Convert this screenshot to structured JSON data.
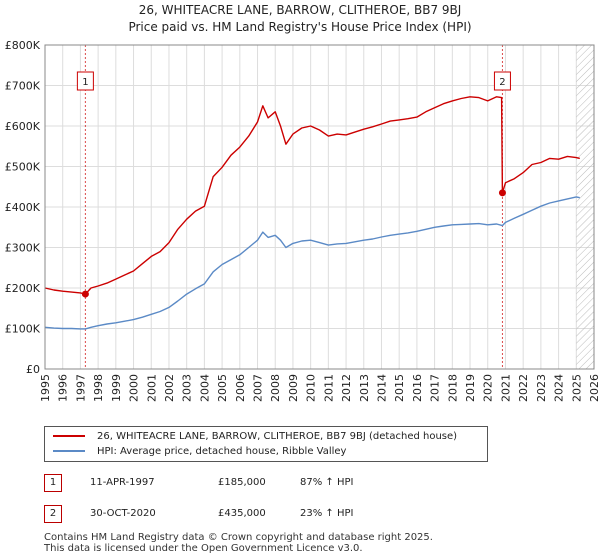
{
  "title_line1": "26, WHITEACRE LANE, BARROW, CLITHEROE, BB7 9BJ",
  "title_line2": "Price paid vs. HM Land Registry's House Price Index (HPI)",
  "colors": {
    "property": "#cc0000",
    "hpi": "#5b8ac6",
    "grid": "#dddddd",
    "marker": "#cc0000",
    "hatch": "#bbbbbb"
  },
  "legend": {
    "property_label": "26, WHITEACRE LANE, BARROW, CLITHEROE, BB7 9BJ (detached house)",
    "hpi_label": "HPI: Average price, detached house, Ribble Valley"
  },
  "annotations": [
    {
      "id": "1",
      "date": "11-APR-1997",
      "price": "£185,000",
      "hpi_change": "87% ↑ HPI"
    },
    {
      "id": "2",
      "date": "30-OCT-2020",
      "price": "£435,000",
      "hpi_change": "23% ↑ HPI"
    }
  ],
  "footer_line1": "Contains HM Land Registry data © Crown copyright and database right 2025.",
  "footer_line2": "This data is licensed under the Open Government Licence v3.0.",
  "chart_data": {
    "type": "line",
    "title": "26, WHITEACRE LANE, BARROW, CLITHEROE, BB7 9BJ",
    "subtitle": "Price paid vs. HM Land Registry's House Price Index (HPI)",
    "xlabel": "",
    "ylabel": "",
    "xlim": [
      1995,
      2026
    ],
    "ylim": [
      0,
      800000
    ],
    "y_ticks": [
      0,
      100000,
      200000,
      300000,
      400000,
      500000,
      600000,
      700000,
      800000
    ],
    "y_tick_labels": [
      "£0",
      "£100K",
      "£200K",
      "£300K",
      "£400K",
      "£500K",
      "£600K",
      "£700K",
      "£800K"
    ],
    "x_ticks": [
      "1995",
      "1996",
      "1997",
      "1998",
      "1999",
      "2000",
      "2001",
      "2002",
      "2003",
      "2004",
      "2005",
      "2006",
      "2007",
      "2008",
      "2009",
      "2010",
      "2011",
      "2012",
      "2013",
      "2014",
      "2015",
      "2016",
      "2017",
      "2018",
      "2019",
      "2020",
      "2021",
      "2022",
      "2023",
      "2024",
      "2025",
      "2026"
    ],
    "grid": true,
    "forecast_hatch_from": 2025.0,
    "sales": [
      {
        "label": "1",
        "x": 1997.28,
        "y": 185000
      },
      {
        "label": "2",
        "x": 2020.83,
        "y": 435000
      }
    ],
    "series": [
      {
        "name": "26, WHITEACRE LANE, BARROW, CLITHEROE, BB7 9BJ (detached house)",
        "color": "#cc0000",
        "x": [
          1995.0,
          1995.5,
          1996.0,
          1996.5,
          1997.0,
          1997.28,
          1997.6,
          1998.0,
          1998.5,
          1999.0,
          1999.5,
          2000.0,
          2000.5,
          2001.0,
          2001.5,
          2002.0,
          2002.5,
          2003.0,
          2003.5,
          2004.0,
          2004.5,
          2005.0,
          2005.5,
          2006.0,
          2006.5,
          2007.0,
          2007.3,
          2007.6,
          2008.0,
          2008.3,
          2008.6,
          2009.0,
          2009.5,
          2010.0,
          2010.5,
          2011.0,
          2011.5,
          2012.0,
          2012.5,
          2013.0,
          2013.5,
          2014.0,
          2014.5,
          2015.0,
          2015.5,
          2016.0,
          2016.5,
          2017.0,
          2017.5,
          2018.0,
          2018.5,
          2019.0,
          2019.5,
          2020.0,
          2020.5,
          2020.78,
          2020.83,
          2021.0,
          2021.5,
          2022.0,
          2022.5,
          2023.0,
          2023.5,
          2024.0,
          2024.5,
          2025.0,
          2025.2
        ],
        "y": [
          200000,
          195000,
          192000,
          190000,
          188000,
          185000,
          200000,
          205000,
          212000,
          222000,
          232000,
          242000,
          260000,
          278000,
          290000,
          312000,
          345000,
          370000,
          390000,
          402000,
          475000,
          498000,
          528000,
          548000,
          575000,
          610000,
          650000,
          620000,
          635000,
          600000,
          555000,
          580000,
          595000,
          600000,
          590000,
          575000,
          580000,
          578000,
          585000,
          592000,
          598000,
          605000,
          612000,
          615000,
          618000,
          622000,
          635000,
          645000,
          655000,
          662000,
          668000,
          672000,
          670000,
          662000,
          672000,
          670000,
          435000,
          460000,
          470000,
          485000,
          505000,
          510000,
          520000,
          518000,
          525000,
          522000,
          520000
        ]
      },
      {
        "name": "HPI: Average price, detached house, Ribble Valley",
        "color": "#5b8ac6",
        "x": [
          1995.0,
          1995.5,
          1996.0,
          1996.5,
          1997.0,
          1997.28,
          1997.6,
          1998.0,
          1998.5,
          1999.0,
          1999.5,
          2000.0,
          2000.5,
          2001.0,
          2001.5,
          2002.0,
          2002.5,
          2003.0,
          2003.5,
          2004.0,
          2004.5,
          2005.0,
          2005.5,
          2006.0,
          2006.5,
          2007.0,
          2007.3,
          2007.6,
          2008.0,
          2008.3,
          2008.6,
          2009.0,
          2009.5,
          2010.0,
          2010.5,
          2011.0,
          2011.5,
          2012.0,
          2012.5,
          2013.0,
          2013.5,
          2014.0,
          2014.5,
          2015.0,
          2015.5,
          2016.0,
          2016.5,
          2017.0,
          2017.5,
          2018.0,
          2018.5,
          2019.0,
          2019.5,
          2020.0,
          2020.5,
          2020.83,
          2021.0,
          2021.5,
          2022.0,
          2022.5,
          2023.0,
          2023.5,
          2024.0,
          2024.5,
          2025.0,
          2025.2
        ],
        "y": [
          103000,
          101000,
          100000,
          100000,
          99000,
          99000,
          103000,
          107000,
          111000,
          114000,
          118000,
          122000,
          128000,
          135000,
          142000,
          152000,
          168000,
          185000,
          198000,
          210000,
          240000,
          258000,
          270000,
          282000,
          300000,
          318000,
          338000,
          325000,
          330000,
          318000,
          300000,
          310000,
          316000,
          318000,
          312000,
          306000,
          309000,
          310000,
          314000,
          318000,
          321000,
          326000,
          330000,
          333000,
          336000,
          340000,
          345000,
          350000,
          353000,
          356000,
          357000,
          358000,
          359000,
          356000,
          358000,
          354000,
          362000,
          372000,
          382000,
          392000,
          402000,
          410000,
          415000,
          420000,
          425000,
          423000
        ]
      }
    ]
  }
}
